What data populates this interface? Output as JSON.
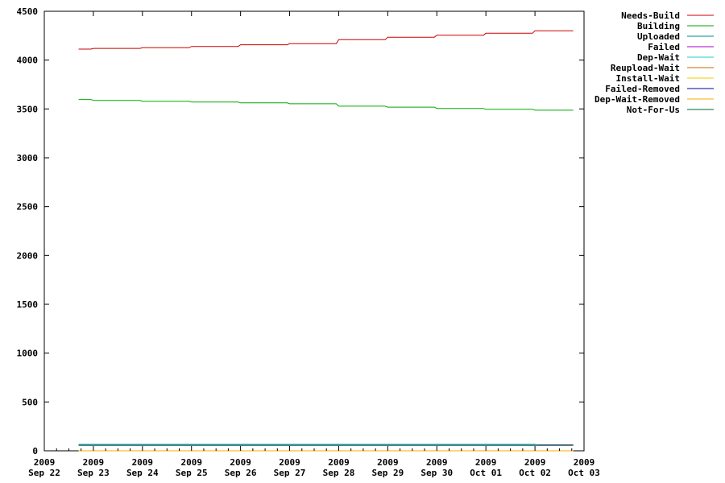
{
  "chart_data": {
    "type": "line",
    "title": "",
    "xlabel": "",
    "ylabel": "",
    "x_ticks": [
      {
        "day": 0,
        "year": "2009",
        "label": "Sep 22"
      },
      {
        "day": 1,
        "year": "2009",
        "label": "Sep 23"
      },
      {
        "day": 2,
        "year": "2009",
        "label": "Sep 24"
      },
      {
        "day": 3,
        "year": "2009",
        "label": "Sep 25"
      },
      {
        "day": 4,
        "year": "2009",
        "label": "Sep 26"
      },
      {
        "day": 5,
        "year": "2009",
        "label": "Sep 27"
      },
      {
        "day": 6,
        "year": "2009",
        "label": "Sep 28"
      },
      {
        "day": 7,
        "year": "2009",
        "label": "Sep 29"
      },
      {
        "day": 8,
        "year": "2009",
        "label": "Sep 30"
      },
      {
        "day": 9,
        "year": "2009",
        "label": "Oct 01"
      },
      {
        "day": 10,
        "year": "2009",
        "label": "Oct 02"
      },
      {
        "day": 11,
        "year": "2009",
        "label": "Oct 03"
      }
    ],
    "xlim": [
      0,
      11
    ],
    "ylim": [
      0,
      4500
    ],
    "y_ticks": [
      0,
      500,
      1000,
      1500,
      2000,
      2500,
      3000,
      3500,
      4000,
      4500
    ],
    "grid": false,
    "legend_position": "outside top-right",
    "series": [
      {
        "name": "Needs-Build",
        "color": "#cc0000",
        "points": [
          [
            0.7,
            4113
          ],
          [
            0.95,
            4113
          ],
          [
            1.0,
            4120
          ],
          [
            1.95,
            4120
          ],
          [
            2.0,
            4127
          ],
          [
            2.95,
            4127
          ],
          [
            3.0,
            4140
          ],
          [
            3.95,
            4140
          ],
          [
            4.0,
            4157
          ],
          [
            4.95,
            4157
          ],
          [
            5.0,
            4168
          ],
          [
            5.95,
            4168
          ],
          [
            6.0,
            4210
          ],
          [
            6.95,
            4210
          ],
          [
            7.0,
            4235
          ],
          [
            7.95,
            4235
          ],
          [
            8.0,
            4255
          ],
          [
            8.95,
            4255
          ],
          [
            9.0,
            4275
          ],
          [
            9.95,
            4275
          ],
          [
            10.0,
            4300
          ],
          [
            10.78,
            4300
          ]
        ]
      },
      {
        "name": "Building",
        "color": "#00aa00",
        "points": [
          [
            0.7,
            3597
          ],
          [
            0.95,
            3597
          ],
          [
            1.0,
            3587
          ],
          [
            1.95,
            3587
          ],
          [
            2.0,
            3578
          ],
          [
            2.95,
            3578
          ],
          [
            3.0,
            3570
          ],
          [
            3.95,
            3570
          ],
          [
            4.0,
            3562
          ],
          [
            4.95,
            3562
          ],
          [
            5.0,
            3553
          ],
          [
            5.95,
            3553
          ],
          [
            6.0,
            3528
          ],
          [
            6.95,
            3528
          ],
          [
            7.0,
            3518
          ],
          [
            7.95,
            3518
          ],
          [
            8.0,
            3505
          ],
          [
            8.95,
            3505
          ],
          [
            9.0,
            3497
          ],
          [
            9.95,
            3497
          ],
          [
            10.0,
            3487
          ],
          [
            10.78,
            3487
          ]
        ]
      },
      {
        "name": "Uploaded",
        "color": "#008b8b",
        "points": [
          [
            0.7,
            67
          ],
          [
            10.0,
            67
          ],
          [
            10.05,
            60
          ],
          [
            10.78,
            60
          ]
        ]
      },
      {
        "name": "Failed",
        "color": "#aa00cc",
        "points": [
          [
            0.7,
            62
          ],
          [
            10.78,
            62
          ]
        ]
      },
      {
        "name": "Dep-Wait",
        "color": "#22cccc",
        "points": [
          [
            0.7,
            66
          ],
          [
            10.0,
            66
          ],
          [
            10.05,
            58
          ],
          [
            10.78,
            58
          ]
        ]
      },
      {
        "name": "Reupload-Wait",
        "color": "#cc6600",
        "points": [
          [
            0.7,
            0
          ],
          [
            10.78,
            0
          ]
        ]
      },
      {
        "name": "Install-Wait",
        "color": "#eecc00",
        "points": [
          [
            0.7,
            0
          ],
          [
            10.78,
            0
          ]
        ]
      },
      {
        "name": "Failed-Removed",
        "color": "#000099",
        "points": [
          [
            0.7,
            0
          ],
          [
            10.78,
            0
          ]
        ]
      },
      {
        "name": "Dep-Wait-Removed",
        "color": "#ffaa00",
        "points": [
          [
            0.7,
            0
          ],
          [
            10.78,
            0
          ]
        ]
      },
      {
        "name": "Not-For-Us",
        "color": "#006633",
        "points": [
          [
            0.7,
            55
          ],
          [
            10.78,
            55
          ]
        ]
      }
    ]
  }
}
